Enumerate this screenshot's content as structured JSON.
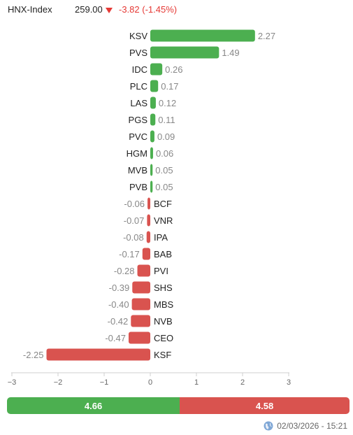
{
  "header": {
    "index_name": "HNX-Index",
    "index_value": "259.00",
    "change_text": "-3.82 (-1.45%)",
    "direction_icon": "down-triangle-icon",
    "down_color": "#e53935"
  },
  "chart_data": {
    "type": "bar",
    "orientation": "horizontal",
    "categories": [
      "KSV",
      "PVS",
      "IDC",
      "PLC",
      "LAS",
      "PGS",
      "PVC",
      "HGM",
      "MVB",
      "PVB",
      "BCF",
      "VNR",
      "IPA",
      "BAB",
      "PVI",
      "SHS",
      "MBS",
      "NVB",
      "CEO",
      "KSF"
    ],
    "values": [
      2.27,
      1.49,
      0.26,
      0.17,
      0.12,
      0.11,
      0.09,
      0.06,
      0.05,
      0.05,
      -0.06,
      -0.07,
      -0.08,
      -0.17,
      -0.28,
      -0.39,
      -0.4,
      -0.42,
      -0.47,
      -2.25
    ],
    "value_labels": [
      "2.27",
      "1.49",
      "0.26",
      "0.17",
      "0.12",
      "0.11",
      "0.09",
      "0.06",
      "0.05",
      "0.05",
      "-0.06",
      "-0.07",
      "-0.08",
      "-0.17",
      "-0.28",
      "-0.39",
      "-0.40",
      "-0.42",
      "-0.47",
      "-2.25"
    ],
    "xlim": [
      -3,
      3
    ],
    "xticks": [
      -3,
      -2,
      -1,
      0,
      1,
      2,
      3
    ],
    "xtick_labels": [
      "−3",
      "−2",
      "−1",
      "0",
      "1",
      "2",
      "3"
    ],
    "positive_color": "#4caf50",
    "negative_color": "#d9534f",
    "grid": false,
    "legend": "none"
  },
  "summary": {
    "up_value": 4.66,
    "up_label": "4.66",
    "down_value": 4.58,
    "down_label": "4.58"
  },
  "footer": {
    "icon": "globe-icon",
    "timestamp": "02/03/2026 - 15:21"
  }
}
